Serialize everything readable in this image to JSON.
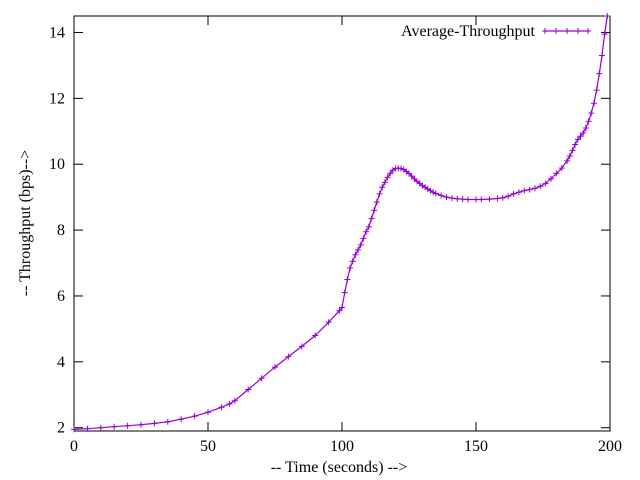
{
  "chart_data": {
    "type": "line",
    "title": "",
    "xlabel": "-- Time (seconds) -->",
    "ylabel": "-- Throughput (bps)-->",
    "xlim": [
      0,
      200
    ],
    "ylim": [
      1.9,
      14.5
    ],
    "xticks": [
      0,
      50,
      100,
      150,
      200
    ],
    "yticks": [
      2,
      4,
      6,
      8,
      10,
      12,
      14
    ],
    "grid": false,
    "legend_position": "top-right",
    "series": [
      {
        "name": "Average-Throughput",
        "color": "#9400d3",
        "marker": "plus",
        "x": [
          0,
          5,
          10,
          15,
          20,
          25,
          30,
          35,
          40,
          45,
          50,
          55,
          58,
          60,
          65,
          70,
          75,
          80,
          85,
          90,
          95,
          99,
          100,
          101,
          102,
          103,
          104,
          105,
          106,
          107,
          108,
          109,
          110,
          111,
          112,
          113,
          114,
          115,
          116,
          117,
          118,
          119,
          120,
          121,
          122,
          123,
          124,
          125,
          126,
          127,
          128,
          129,
          130,
          131,
          132,
          133,
          134,
          135,
          137,
          139,
          141,
          143,
          145,
          147,
          150,
          152,
          155,
          158,
          160,
          162,
          164,
          166,
          168,
          170,
          172,
          174,
          176,
          178,
          180,
          182,
          184,
          185,
          186,
          187,
          188,
          189,
          190,
          191,
          192,
          193,
          194,
          195,
          196,
          197,
          198,
          199
        ],
        "y": [
          1.95,
          1.97,
          2.0,
          2.03,
          2.06,
          2.09,
          2.13,
          2.18,
          2.26,
          2.35,
          2.47,
          2.62,
          2.72,
          2.82,
          3.16,
          3.5,
          3.84,
          4.16,
          4.47,
          4.8,
          5.2,
          5.55,
          5.65,
          6.1,
          6.5,
          6.85,
          7.05,
          7.25,
          7.4,
          7.55,
          7.75,
          7.95,
          8.1,
          8.35,
          8.6,
          8.85,
          9.1,
          9.3,
          9.45,
          9.6,
          9.72,
          9.82,
          9.87,
          9.88,
          9.87,
          9.84,
          9.78,
          9.72,
          9.64,
          9.55,
          9.48,
          9.42,
          9.35,
          9.3,
          9.25,
          9.2,
          9.15,
          9.11,
          9.05,
          9.0,
          8.97,
          8.95,
          8.94,
          8.93,
          8.93,
          8.93,
          8.94,
          8.96,
          8.98,
          9.03,
          9.1,
          9.15,
          9.2,
          9.23,
          9.27,
          9.33,
          9.42,
          9.56,
          9.72,
          9.88,
          10.1,
          10.25,
          10.42,
          10.6,
          10.75,
          10.85,
          10.95,
          11.1,
          11.3,
          11.55,
          11.85,
          12.25,
          12.75,
          13.3,
          13.95,
          14.5
        ]
      }
    ]
  }
}
